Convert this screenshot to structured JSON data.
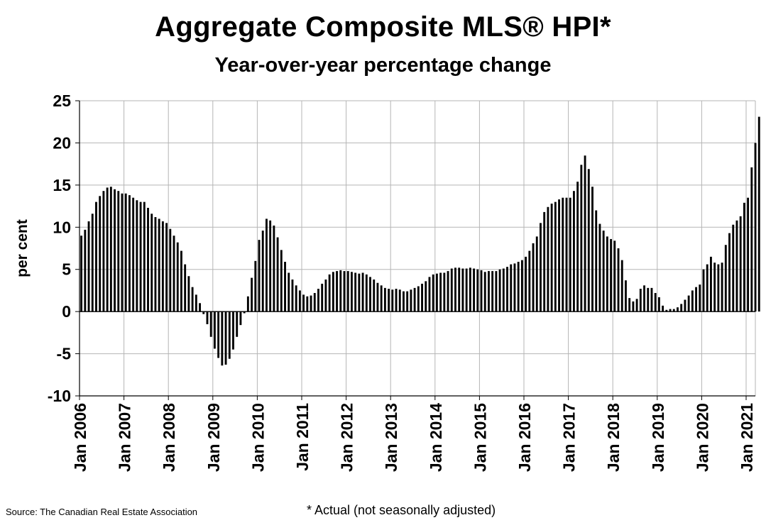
{
  "chart_data": {
    "type": "bar",
    "title": "Aggregate Composite MLS® HPI*",
    "subtitle": "Year-over-year percentage change",
    "xlabel": "",
    "ylabel": "per cent",
    "ylim": [
      -10,
      25
    ],
    "yticks": [
      "25",
      "20",
      "15",
      "10",
      "5",
      "0",
      "-5",
      "-10"
    ],
    "ytick_values": [
      25,
      20,
      15,
      10,
      5,
      0,
      -5,
      -10
    ],
    "grid": true,
    "x_start": "Jan 2006",
    "x_tick_labels": [
      "Jan 2006",
      "Jan 2007",
      "Jan 2008",
      "Jan 2009",
      "Jan 2010",
      "Jan 2011",
      "Jan 2012",
      "Jan 2013",
      "Jan 2014",
      "Jan 2015",
      "Jan 2016",
      "Jan 2017",
      "Jan 2018",
      "Jan 2019",
      "Jan 2020",
      "Jan 2021"
    ],
    "values": [
      9.0,
      9.7,
      10.7,
      11.6,
      13.0,
      13.7,
      14.3,
      14.7,
      14.8,
      14.5,
      14.3,
      14.0,
      14.0,
      13.8,
      13.5,
      13.2,
      13.0,
      13.0,
      12.3,
      11.6,
      11.2,
      11.0,
      10.7,
      10.5,
      9.8,
      9.0,
      8.2,
      7.2,
      5.6,
      4.2,
      2.9,
      2.0,
      1.0,
      -0.3,
      -1.5,
      -3.0,
      -4.4,
      -5.5,
      -6.4,
      -6.3,
      -5.6,
      -4.5,
      -3.0,
      -1.6,
      -0.2,
      1.8,
      4.0,
      6.0,
      8.5,
      9.6,
      11.0,
      10.8,
      10.2,
      8.8,
      7.3,
      5.9,
      4.6,
      3.8,
      3.1,
      2.5,
      2.0,
      1.8,
      1.9,
      2.2,
      2.7,
      3.3,
      3.8,
      4.4,
      4.7,
      4.8,
      4.9,
      4.8,
      4.8,
      4.7,
      4.6,
      4.5,
      4.6,
      4.4,
      4.1,
      3.8,
      3.4,
      3.1,
      2.8,
      2.7,
      2.6,
      2.7,
      2.6,
      2.4,
      2.4,
      2.6,
      2.8,
      3.0,
      3.3,
      3.6,
      4.1,
      4.4,
      4.5,
      4.6,
      4.6,
      4.8,
      5.1,
      5.2,
      5.2,
      5.1,
      5.1,
      5.2,
      5.1,
      5.0,
      4.9,
      4.7,
      4.8,
      4.8,
      4.8,
      5.0,
      5.1,
      5.3,
      5.6,
      5.7,
      5.9,
      6.1,
      6.5,
      7.2,
      8.1,
      8.9,
      10.5,
      11.8,
      12.4,
      12.8,
      13.0,
      13.3,
      13.5,
      13.5,
      13.5,
      14.3,
      15.4,
      17.4,
      18.5,
      16.9,
      14.8,
      12.0,
      10.4,
      9.6,
      8.9,
      8.6,
      8.4,
      7.5,
      6.1,
      3.7,
      1.6,
      1.2,
      1.5,
      2.7,
      3.1,
      2.8,
      2.8,
      2.2,
      1.7,
      0.7,
      0.2,
      0.3,
      0.3,
      0.5,
      0.9,
      1.4,
      1.9,
      2.5,
      2.9,
      3.2,
      5.0,
      5.6,
      6.5,
      5.8,
      5.6,
      5.8,
      7.9,
      9.3,
      10.3,
      10.8,
      11.3,
      12.9,
      13.5,
      17.1,
      20.0,
      23.1
    ]
  },
  "footnote": "* Actual (not seasonally adjusted)",
  "source": "Source: The Canadian Real Estate Association"
}
